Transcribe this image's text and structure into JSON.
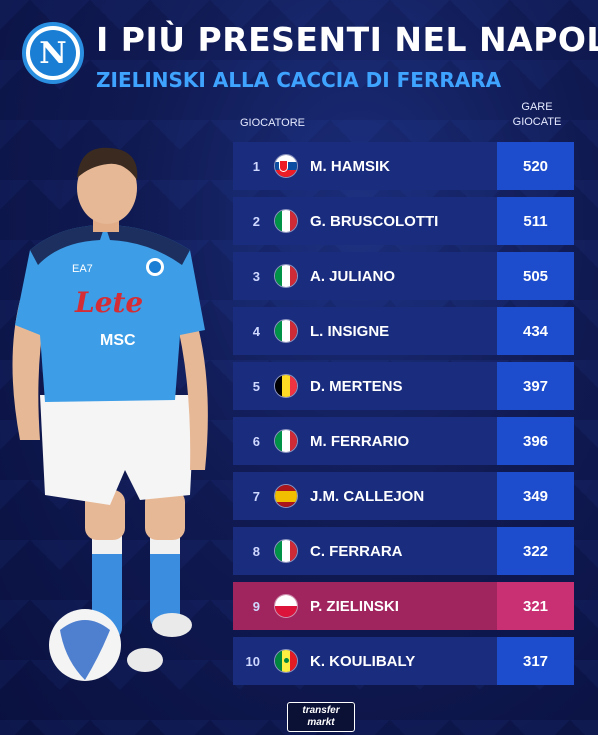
{
  "header": {
    "title": "I PIÙ PRESENTI NEL NAPOLI",
    "subtitle": "ZIELINSKI ALLA CACCIA DI FERRARA",
    "logo_letter": "N"
  },
  "table": {
    "player_header": "GIOCATORE",
    "games_header_line1": "GARE",
    "games_header_line2": "GIOCATE",
    "rows": [
      {
        "rank": "1",
        "name": "M. HAMSIK",
        "games": "520",
        "flag": "slovakia-flag-icon"
      },
      {
        "rank": "2",
        "name": "G. BRUSCOLOTTI",
        "games": "511",
        "flag": "italy-flag-icon"
      },
      {
        "rank": "3",
        "name": "A. JULIANO",
        "games": "505",
        "flag": "italy-flag-icon"
      },
      {
        "rank": "4",
        "name": "L. INSIGNE",
        "games": "434",
        "flag": "italy-flag-icon"
      },
      {
        "rank": "5",
        "name": "D. MERTENS",
        "games": "397",
        "flag": "belgium-flag-icon"
      },
      {
        "rank": "6",
        "name": "M. FERRARIO",
        "games": "396",
        "flag": "italy-flag-icon"
      },
      {
        "rank": "7",
        "name": "J.M. CALLEJON",
        "games": "349",
        "flag": "spain-flag-icon"
      },
      {
        "rank": "8",
        "name": "C. FERRARA",
        "games": "322",
        "flag": "italy-flag-icon"
      },
      {
        "rank": "9",
        "name": "P. ZIELINSKI",
        "games": "321",
        "flag": "poland-flag-icon",
        "highlight": true
      },
      {
        "rank": "10",
        "name": "K. KOULIBALY",
        "games": "317",
        "flag": "senegal-flag-icon"
      }
    ]
  },
  "player_image": {
    "shirt_sponsor": "Lete",
    "shirt_sponsor2": "MSC",
    "shirt_brand": "EA7"
  },
  "footer": {
    "logo_line1": "transfer",
    "logo_line2": "markt"
  },
  "colors": {
    "row_bg": "#1a2c7e",
    "games_bg": "#1d4dcc",
    "highlight_row": "#a0245e",
    "highlight_games": "#c83073",
    "subtitle": "#3fa4ff"
  }
}
